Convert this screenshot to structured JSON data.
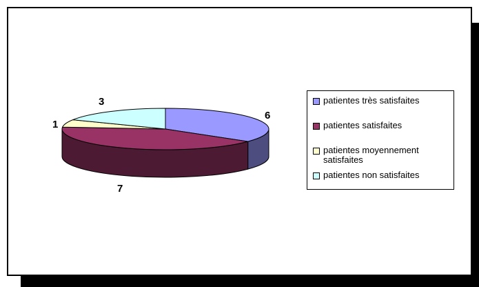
{
  "chart_data": {
    "type": "pie",
    "categories": [
      "patientes très satisfaites",
      "patientes satisfaites",
      "patientes moyennement satisfaites",
      "patientes non satisfaites"
    ],
    "values": [
      6,
      7,
      1,
      3
    ],
    "data_labels": [
      "6",
      "7",
      "1",
      "3"
    ],
    "colors": [
      "#9999ff",
      "#993366",
      "#ffffcc",
      "#ccffff"
    ],
    "side_colors": [
      "#4d4d80",
      "#4d1a33",
      "#80806b",
      "#668080"
    ],
    "three_d": true,
    "legend_position": "right"
  }
}
